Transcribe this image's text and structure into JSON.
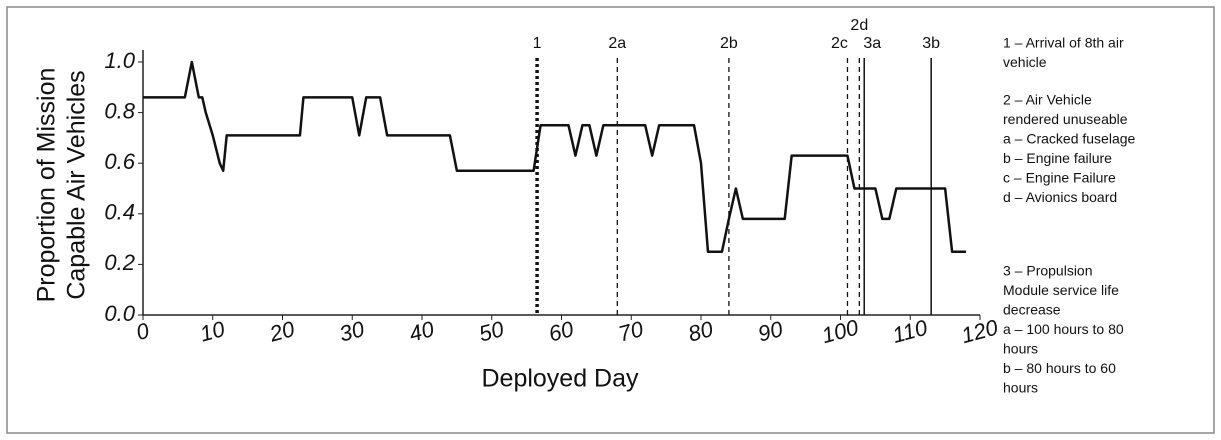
{
  "chart_data": {
    "type": "line",
    "xlabel": "Deployed Day",
    "ylabel": [
      "Proportion of Mission",
      "Capable Air Vehicles"
    ],
    "x": [
      0,
      6,
      7,
      8,
      8.5,
      9,
      10,
      11,
      11.5,
      12,
      22.5,
      23,
      30,
      31,
      32,
      34,
      35,
      44,
      45,
      56,
      57,
      61,
      62,
      63,
      64,
      65,
      66,
      72,
      73,
      74,
      79,
      80,
      81,
      83,
      84,
      85,
      86,
      92,
      93,
      101,
      102,
      105,
      106,
      107,
      108,
      115,
      116,
      118
    ],
    "series": [
      {
        "color": "#111111",
        "values": [
          0.86,
          0.86,
          1.0,
          0.86,
          0.86,
          0.8,
          0.71,
          0.6,
          0.57,
          0.71,
          0.71,
          0.86,
          0.86,
          0.71,
          0.86,
          0.86,
          0.71,
          0.71,
          0.57,
          0.57,
          0.75,
          0.75,
          0.63,
          0.75,
          0.75,
          0.63,
          0.75,
          0.75,
          0.63,
          0.75,
          0.75,
          0.6,
          0.25,
          0.25,
          0.38,
          0.5,
          0.38,
          0.38,
          0.63,
          0.63,
          0.5,
          0.5,
          0.38,
          0.38,
          0.5,
          0.5,
          0.25,
          0.25
        ]
      }
    ],
    "xlim": [
      0,
      120
    ],
    "xticks": [
      0,
      10,
      20,
      30,
      40,
      50,
      60,
      70,
      80,
      90,
      100,
      110,
      120
    ],
    "ylim": [
      0,
      1.0
    ],
    "yticks": [
      {
        "value": 0,
        "label": "0.0"
      },
      0.2,
      0.4,
      0.6,
      0.8,
      {
        "value": 1.0,
        "label": "1.0"
      }
    ],
    "events": [
      {
        "label": "1",
        "x": 56.5,
        "style": "dotted"
      },
      {
        "label": "2a",
        "x": 68,
        "style": "dashed"
      },
      {
        "label": "2b",
        "x": 84,
        "style": "dashed"
      },
      {
        "label": "2c",
        "x": 101,
        "style": "dashed"
      },
      {
        "label": "2d",
        "x": 102.7,
        "style": "dashed"
      },
      {
        "label": "3a",
        "x": 103.4,
        "style": "solid"
      },
      {
        "label": "3b",
        "x": 113,
        "style": "solid"
      }
    ],
    "notes": [
      [
        "1 – Arrival of 8th air",
        "vehicle"
      ],
      [
        "2 – Air Vehicle",
        "rendered unuseable",
        "a – Cracked fuselage",
        "b – Engine failure",
        "c – Engine Failure",
        "d – Avionics board"
      ],
      [
        "3 – Propulsion",
        "Module service life",
        "decrease",
        "a – 100 hours to 80",
        "hours",
        "b – 80 hours to 60",
        "hours"
      ]
    ]
  }
}
